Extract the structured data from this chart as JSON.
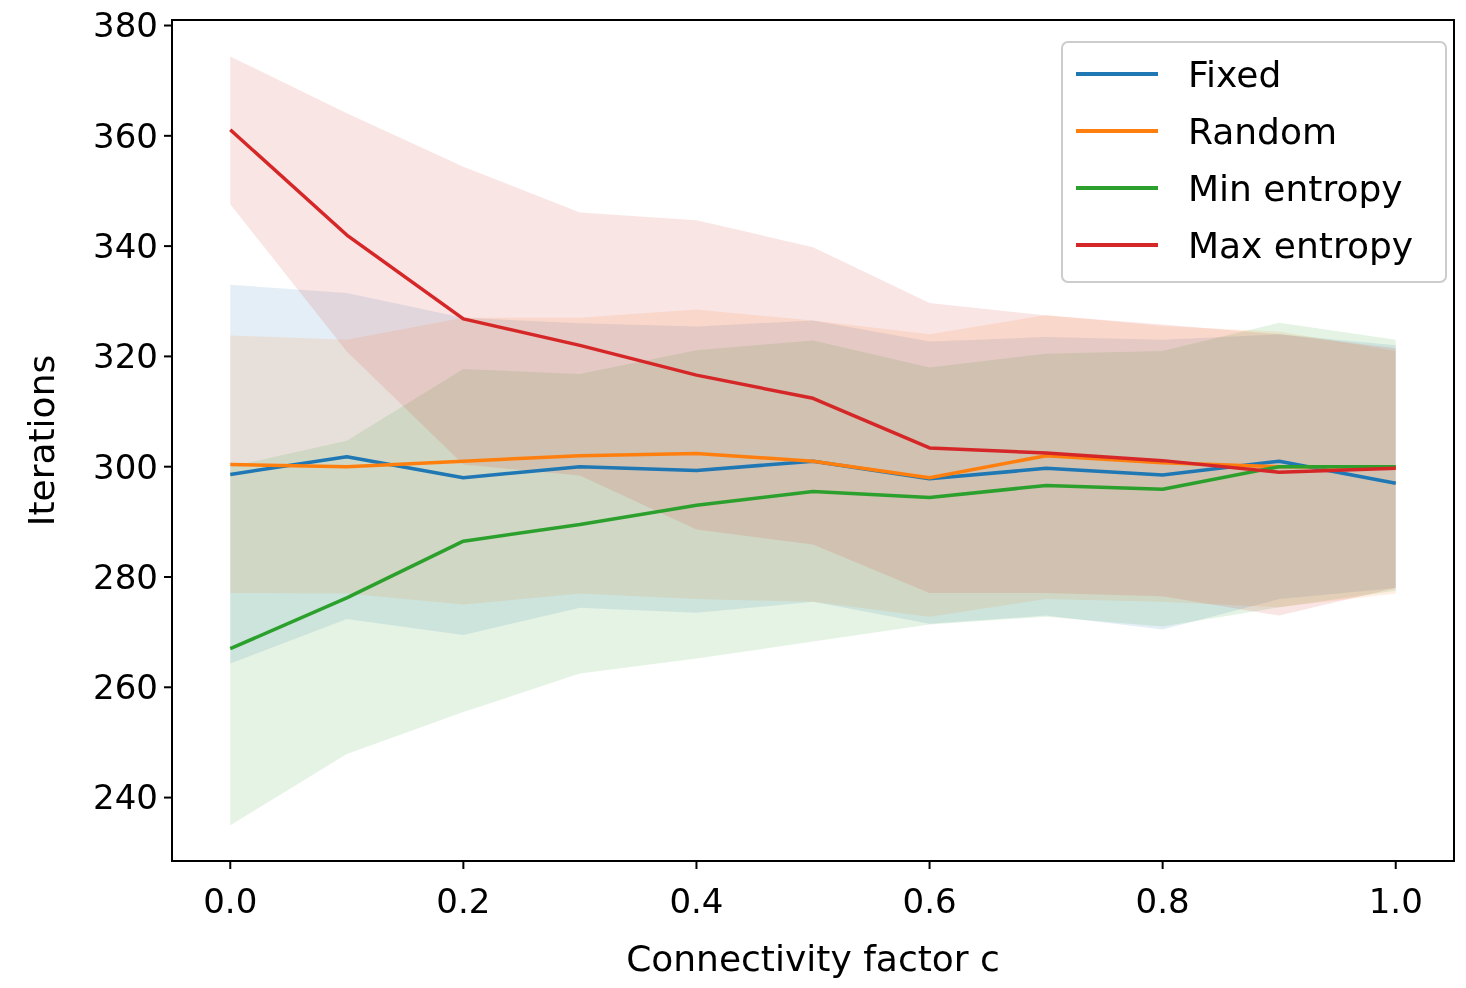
{
  "chart_data": {
    "type": "line",
    "xlabel": "Connectivity factor c",
    "ylabel": "Iterations",
    "x": [
      0,
      0.1,
      0.2,
      0.3,
      0.4,
      0.5,
      0.6,
      0.7,
      0.8,
      0.9,
      1.0
    ],
    "xlim": [
      -0.05,
      1.05
    ],
    "xticks": [
      {
        "value": 0,
        "label": "0.0"
      },
      0.2,
      0.4,
      0.6,
      0.8,
      {
        "value": 1,
        "label": "1.0"
      }
    ],
    "ylim": [
      228.5,
      381
    ],
    "yticks": [
      240,
      260,
      280,
      300,
      320,
      340,
      360,
      380
    ],
    "legend": "top right",
    "grid": false,
    "series": [
      {
        "name": "Fixed",
        "color": "#1f77b4",
        "values": [
          298.6,
          301.8,
          298,
          300,
          299.3,
          301,
          297.8,
          299.7,
          298.5,
          301,
          297
        ],
        "upper": [
          333,
          331.5,
          327,
          326,
          325.4,
          326.5,
          322.7,
          323.5,
          323,
          324,
          322
        ],
        "lower": [
          264.3,
          272.4,
          269.5,
          274.4,
          273.5,
          275.5,
          271.5,
          273,
          270.5,
          276,
          278
        ]
      },
      {
        "name": "Random",
        "color": "#ff7f0e",
        "values": [
          300.4,
          300,
          301,
          302,
          302.4,
          301,
          298,
          302,
          300.7,
          300,
          300
        ],
        "upper": [
          323.8,
          323,
          327,
          327,
          328.5,
          326.5,
          324,
          327.5,
          325.5,
          324.5,
          321
        ],
        "lower": [
          277.1,
          277,
          275,
          277,
          276,
          275.5,
          272.8,
          276,
          275.5,
          274.5,
          277
        ]
      },
      {
        "name": "Min entropy",
        "color": "#2ca02c",
        "values": [
          267,
          276.2,
          286.5,
          289.5,
          293,
          295.5,
          294.4,
          296.6,
          295.9,
          300,
          300
        ],
        "upper": [
          300,
          304.7,
          317.7,
          316.8,
          321.1,
          322.9,
          318,
          320.5,
          321,
          326.1,
          323
        ],
        "lower": [
          235,
          247.9,
          255.5,
          262.5,
          265.2,
          268.3,
          271.4,
          272.8,
          271,
          274.5,
          277.5
        ]
      },
      {
        "name": "Max entropy",
        "color": "#d62728",
        "values": [
          361.1,
          342,
          326.8,
          322,
          316.6,
          312.4,
          303.4,
          302.5,
          301.1,
          299,
          299.7
        ],
        "upper": [
          374.4,
          364.1,
          354.4,
          346.1,
          344.7,
          339.8,
          329.7,
          327.4,
          325.8,
          324,
          321.5
        ],
        "lower": [
          347.6,
          320.9,
          300.4,
          298.4,
          288.6,
          285.9,
          277.1,
          277.1,
          276.5,
          273,
          278
        ]
      }
    ]
  }
}
